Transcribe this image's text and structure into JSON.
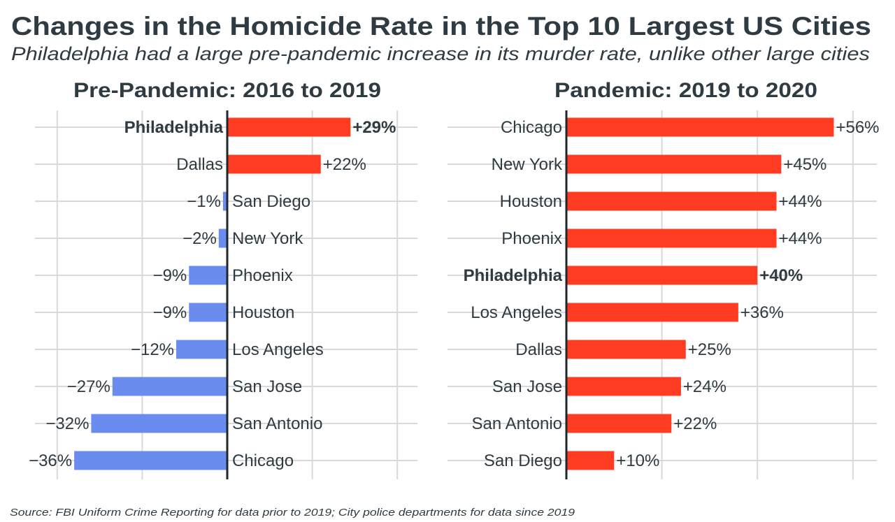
{
  "title": "Changes in the Homicide Rate in the Top 10 Largest US Cities",
  "subtitle": "Philadelphia had a large pre-pandemic increase in its murder rate, unlike other large cities",
  "source": "Source: FBI Uniform Crime Reporting for data prior to 2019; City police departments for data since 2019",
  "colors": {
    "increase": "#ff3b22",
    "decrease": "#6a8cee",
    "text": "#2f3b42",
    "grid": "#d9d9d9"
  },
  "chart_data": [
    {
      "type": "bar",
      "orientation": "horizontal",
      "title": "Pre-Pandemic: 2016 to 2019",
      "categories": [
        "Philadelphia",
        "Dallas",
        "San Diego",
        "New York",
        "Phoenix",
        "Houston",
        "Los Angeles",
        "San Jose",
        "San Antonio",
        "Chicago"
      ],
      "values": [
        29,
        22,
        -1,
        -2,
        -9,
        -9,
        -12,
        -27,
        -32,
        -36
      ],
      "labels": [
        "+29%",
        "+22%",
        "−1%",
        "−2%",
        "−9%",
        "−9%",
        "−12%",
        "−27%",
        "−32%",
        "−36%"
      ],
      "highlight": "Philadelphia",
      "xlim": [
        -45,
        45
      ],
      "grid": true
    },
    {
      "type": "bar",
      "orientation": "horizontal",
      "title": "Pandemic: 2019 to 2020",
      "categories": [
        "Chicago",
        "New York",
        "Houston",
        "Phoenix",
        "Philadelphia",
        "Los Angeles",
        "Dallas",
        "San Jose",
        "San Antonio",
        "San Diego"
      ],
      "values": [
        56,
        45,
        44,
        44,
        40,
        36,
        25,
        24,
        22,
        10
      ],
      "labels": [
        "+56%",
        "+45%",
        "+44%",
        "+44%",
        "+40%",
        "+36%",
        "+25%",
        "+24%",
        "+22%",
        "+10%"
      ],
      "highlight": "Philadelphia",
      "xlim": [
        -25,
        65
      ],
      "grid": true
    }
  ]
}
